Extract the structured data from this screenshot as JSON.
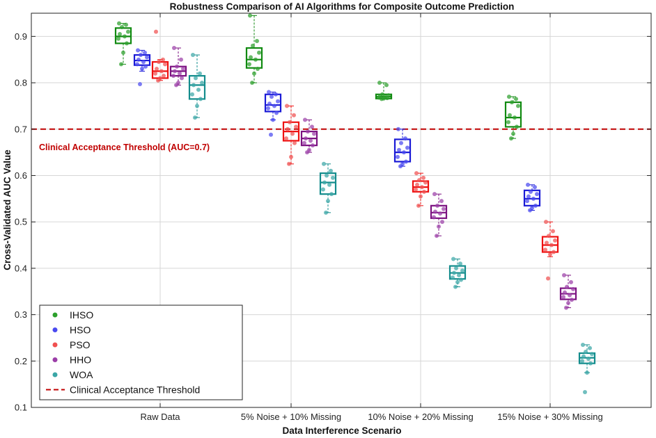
{
  "chart_data": {
    "type": "box",
    "title": "Robustness Comparison of AI Algorithms for Composite Outcome Prediction",
    "xlabel": "Data Interference Scenario",
    "ylabel": "Cross-Validated AUC Value",
    "ylim": [
      0.1,
      0.95
    ],
    "yticks": [
      0.1,
      0.2,
      0.3,
      0.4,
      0.5,
      0.6,
      0.7,
      0.8,
      0.9
    ],
    "ytick_labels": [
      "0.1",
      "0.2",
      "0.3",
      "0.4",
      "0.5",
      "0.6",
      "0.7",
      "0.8",
      "0.9"
    ],
    "grid": true,
    "legend_position": "bottom-left",
    "categories": [
      "Raw Data",
      "5% Noise + 10% Missing",
      "10% Noise + 20% Missing",
      "15% Noise + 30% Missing"
    ],
    "threshold": {
      "value": 0.7,
      "legend_label": "Clinical Acceptance Threshold",
      "annotation": "Clinical Acceptance Threshold (AUC=0.7)",
      "color": "#c00000"
    },
    "series": [
      {
        "name": "IHSO",
        "box_color": "#118a11",
        "point_color": "#2ca02c",
        "boxes": [
          {
            "whisker_low": 0.84,
            "q1": 0.885,
            "median": 0.9,
            "q3": 0.918,
            "whisker_high": 0.928,
            "points": [
              0.928,
              0.925,
              0.92,
              0.91,
              0.905,
              0.9,
              0.895,
              0.885,
              0.865,
              0.84
            ]
          },
          {
            "whisker_low": 0.8,
            "q1": 0.832,
            "median": 0.85,
            "q3": 0.875,
            "whisker_high": 0.945,
            "points": [
              0.945,
              0.89,
              0.88,
              0.865,
              0.855,
              0.85,
              0.84,
              0.83,
              0.82,
              0.8
            ]
          },
          {
            "whisker_low": 0.765,
            "q1": 0.766,
            "median": 0.77,
            "q3": 0.775,
            "whisker_high": 0.8,
            "points": [
              0.8,
              0.795,
              0.775,
              0.773,
              0.771,
              0.77,
              0.768,
              0.767,
              0.766,
              0.765
            ]
          },
          {
            "whisker_low": 0.68,
            "q1": 0.705,
            "median": 0.725,
            "q3": 0.758,
            "whisker_high": 0.77,
            "points": [
              0.77,
              0.765,
              0.758,
              0.75,
              0.73,
              0.725,
              0.715,
              0.705,
              0.69,
              0.68
            ]
          }
        ]
      },
      {
        "name": "HSO",
        "box_color": "#1a1ad6",
        "point_color": "#4a4af0",
        "boxes": [
          {
            "whisker_low": 0.825,
            "q1": 0.838,
            "median": 0.848,
            "q3": 0.86,
            "whisker_high": 0.87,
            "points": [
              0.87,
              0.865,
              0.86,
              0.855,
              0.85,
              0.845,
              0.84,
              0.835,
              0.83,
              0.797
            ]
          },
          {
            "whisker_low": 0.72,
            "q1": 0.738,
            "median": 0.752,
            "q3": 0.775,
            "whisker_high": 0.78,
            "points": [
              0.78,
              0.775,
              0.77,
              0.76,
              0.755,
              0.75,
              0.745,
              0.735,
              0.72,
              0.688
            ]
          },
          {
            "whisker_low": 0.62,
            "q1": 0.63,
            "median": 0.65,
            "q3": 0.678,
            "whisker_high": 0.7,
            "points": [
              0.7,
              0.68,
              0.67,
              0.66,
              0.655,
              0.65,
              0.64,
              0.63,
              0.625,
              0.62
            ]
          },
          {
            "whisker_low": 0.525,
            "q1": 0.535,
            "median": 0.55,
            "q3": 0.568,
            "whisker_high": 0.58,
            "points": [
              0.58,
              0.575,
              0.565,
              0.56,
              0.555,
              0.55,
              0.545,
              0.535,
              0.53,
              0.525
            ]
          }
        ]
      },
      {
        "name": "PSO",
        "box_color": "#ee1111",
        "point_color": "#f05050",
        "boxes": [
          {
            "whisker_low": 0.805,
            "q1": 0.81,
            "median": 0.825,
            "q3": 0.845,
            "whisker_high": 0.85,
            "points": [
              0.91,
              0.85,
              0.845,
              0.84,
              0.83,
              0.825,
              0.82,
              0.815,
              0.81,
              0.805
            ]
          },
          {
            "whisker_low": 0.625,
            "q1": 0.675,
            "median": 0.695,
            "q3": 0.715,
            "whisker_high": 0.75,
            "points": [
              0.75,
              0.73,
              0.715,
              0.705,
              0.7,
              0.69,
              0.68,
              0.67,
              0.64,
              0.625
            ]
          },
          {
            "whisker_low": 0.535,
            "q1": 0.565,
            "median": 0.575,
            "q3": 0.588,
            "whisker_high": 0.605,
            "points": [
              0.605,
              0.595,
              0.59,
              0.585,
              0.58,
              0.575,
              0.57,
              0.565,
              0.555,
              0.535
            ]
          },
          {
            "whisker_low": 0.425,
            "q1": 0.435,
            "median": 0.45,
            "q3": 0.468,
            "whisker_high": 0.5,
            "points": [
              0.5,
              0.48,
              0.47,
              0.46,
              0.455,
              0.45,
              0.44,
              0.435,
              0.43,
              0.378
            ]
          }
        ]
      },
      {
        "name": "HHO",
        "box_color": "#7b1280",
        "point_color": "#9b3ea8",
        "boxes": [
          {
            "whisker_low": 0.795,
            "q1": 0.815,
            "median": 0.825,
            "q3": 0.835,
            "whisker_high": 0.875,
            "points": [
              0.875,
              0.85,
              0.835,
              0.83,
              0.825,
              0.82,
              0.815,
              0.81,
              0.8,
              0.795
            ]
          },
          {
            "whisker_low": 0.65,
            "q1": 0.665,
            "median": 0.68,
            "q3": 0.695,
            "whisker_high": 0.72,
            "points": [
              0.72,
              0.705,
              0.695,
              0.69,
              0.68,
              0.675,
              0.67,
              0.665,
              0.655,
              0.65
            ]
          },
          {
            "whisker_low": 0.47,
            "q1": 0.508,
            "median": 0.52,
            "q3": 0.535,
            "whisker_high": 0.56,
            "points": [
              0.56,
              0.545,
              0.535,
              0.528,
              0.522,
              0.518,
              0.51,
              0.5,
              0.49,
              0.47
            ]
          },
          {
            "whisker_low": 0.315,
            "q1": 0.333,
            "median": 0.345,
            "q3": 0.357,
            "whisker_high": 0.385,
            "points": [
              0.385,
              0.37,
              0.36,
              0.355,
              0.348,
              0.342,
              0.338,
              0.332,
              0.325,
              0.315
            ]
          }
        ]
      },
      {
        "name": "WOA",
        "box_color": "#138c8c",
        "point_color": "#3aa6a6",
        "boxes": [
          {
            "whisker_low": 0.725,
            "q1": 0.765,
            "median": 0.795,
            "q3": 0.815,
            "whisker_high": 0.86,
            "points": [
              0.86,
              0.82,
              0.81,
              0.8,
              0.795,
              0.785,
              0.775,
              0.765,
              0.75,
              0.725
            ]
          },
          {
            "whisker_low": 0.52,
            "q1": 0.56,
            "median": 0.585,
            "q3": 0.605,
            "whisker_high": 0.625,
            "points": [
              0.625,
              0.61,
              0.6,
              0.595,
              0.585,
              0.58,
              0.57,
              0.56,
              0.545,
              0.52
            ]
          },
          {
            "whisker_low": 0.36,
            "q1": 0.377,
            "median": 0.39,
            "q3": 0.405,
            "whisker_high": 0.42,
            "points": [
              0.42,
              0.41,
              0.4,
              0.395,
              0.39,
              0.385,
              0.38,
              0.375,
              0.37,
              0.36
            ]
          },
          {
            "whisker_low": 0.175,
            "q1": 0.195,
            "median": 0.207,
            "q3": 0.217,
            "whisker_high": 0.235,
            "points": [
              0.235,
              0.228,
              0.22,
              0.215,
              0.21,
              0.205,
              0.2,
              0.195,
              0.175,
              0.133
            ]
          }
        ]
      }
    ]
  }
}
